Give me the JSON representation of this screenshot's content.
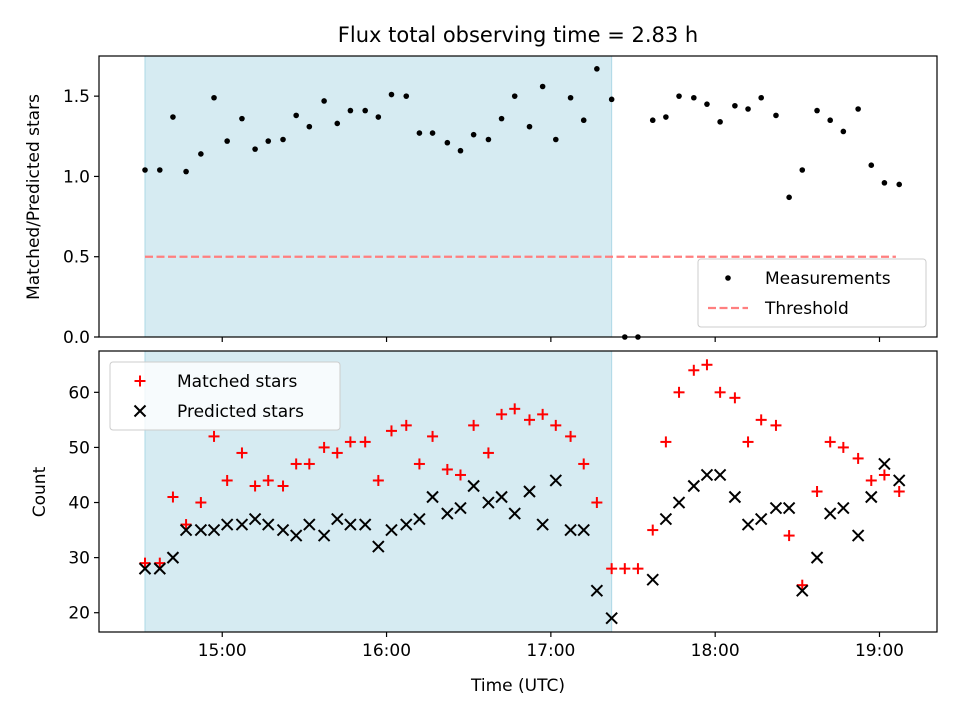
{
  "chart_data": [
    {
      "type": "scatter",
      "title": "Flux total observing time = 2.83 h",
      "xlabel": "",
      "ylabel": "Matched/Predicted stars",
      "x_unit": "hours UTC",
      "xlim": [
        14.25,
        19.35
      ],
      "ylim": [
        0.0,
        1.75
      ],
      "yticks": [
        0.0,
        0.5,
        1.0,
        1.5
      ],
      "ytick_labels": [
        "0.0",
        "0.5",
        "1.0",
        "1.5"
      ],
      "xticks": [
        15,
        16,
        17,
        18,
        19
      ],
      "shaded_span": {
        "x0": 14.53,
        "x1": 17.37,
        "color": "#add8e6"
      },
      "threshold": {
        "name": "Threshold",
        "y": 0.5,
        "x0": 14.53,
        "x1": 19.1,
        "color": "#ff7f7f",
        "style": "dashed"
      },
      "legend": {
        "position": "lower-right",
        "entries": [
          "Measurements",
          "Threshold"
        ]
      },
      "series": [
        {
          "name": "Measurements",
          "color": "#000000",
          "marker": "dot",
          "x": [
            14.53,
            14.62,
            14.7,
            14.78,
            14.87,
            14.95,
            15.03,
            15.12,
            15.2,
            15.28,
            15.37,
            15.45,
            15.53,
            15.62,
            15.7,
            15.78,
            15.87,
            15.95,
            16.03,
            16.12,
            16.2,
            16.28,
            16.37,
            16.45,
            16.53,
            16.62,
            16.7,
            16.78,
            16.87,
            16.95,
            17.03,
            17.12,
            17.2,
            17.28,
            17.37,
            17.45,
            17.53,
            17.62,
            17.7,
            17.78,
            17.87,
            17.95,
            18.03,
            18.12,
            18.2,
            18.28,
            18.37,
            18.45,
            18.53,
            18.62,
            18.7,
            18.78,
            18.87,
            18.95,
            19.03,
            19.12
          ],
          "y": [
            1.04,
            1.04,
            1.37,
            1.03,
            1.14,
            1.49,
            1.22,
            1.36,
            1.17,
            1.22,
            1.23,
            1.38,
            1.31,
            1.47,
            1.33,
            1.41,
            1.41,
            1.37,
            1.51,
            1.5,
            1.27,
            1.27,
            1.21,
            1.16,
            1.26,
            1.23,
            1.36,
            1.5,
            1.31,
            1.56,
            1.23,
            1.49,
            1.35,
            1.67,
            1.48,
            0.0,
            0.0,
            1.35,
            1.37,
            1.5,
            1.49,
            1.45,
            1.34,
            1.44,
            1.42,
            1.49,
            1.38,
            0.87,
            1.04,
            1.41,
            1.35,
            1.28,
            1.42,
            1.07,
            0.96,
            0.95
          ]
        }
      ]
    },
    {
      "type": "scatter",
      "title": "",
      "xlabel": "Time (UTC)",
      "ylabel": "Count",
      "x_unit": "hours UTC",
      "xlim": [
        14.25,
        19.35
      ],
      "ylim": [
        16.5,
        67.5
      ],
      "yticks": [
        20,
        30,
        40,
        50,
        60
      ],
      "ytick_labels": [
        "20",
        "30",
        "40",
        "50",
        "60"
      ],
      "xticks": [
        15,
        16,
        17,
        18,
        19
      ],
      "xtick_labels": [
        "15:00",
        "16:00",
        "17:00",
        "18:00",
        "19:00"
      ],
      "shaded_span": {
        "x0": 14.53,
        "x1": 17.37,
        "color": "#add8e6"
      },
      "legend": {
        "position": "upper-left",
        "entries": [
          "Matched stars",
          "Predicted stars"
        ]
      },
      "series": [
        {
          "name": "Matched stars",
          "color": "#ff0000",
          "marker": "plus",
          "x": [
            14.53,
            14.62,
            14.7,
            14.78,
            14.87,
            14.95,
            15.03,
            15.12,
            15.2,
            15.28,
            15.37,
            15.45,
            15.53,
            15.62,
            15.7,
            15.78,
            15.87,
            15.95,
            16.03,
            16.12,
            16.2,
            16.28,
            16.37,
            16.45,
            16.53,
            16.62,
            16.7,
            16.78,
            16.87,
            16.95,
            17.03,
            17.12,
            17.2,
            17.28,
            17.37,
            17.45,
            17.53,
            17.62,
            17.7,
            17.78,
            17.87,
            17.95,
            18.03,
            18.12,
            18.2,
            18.28,
            18.37,
            18.45,
            18.53,
            18.62,
            18.7,
            18.78,
            18.87,
            18.95,
            19.03,
            19.12
          ],
          "y": [
            29,
            29,
            41,
            36,
            40,
            52,
            44,
            49,
            43,
            44,
            43,
            47,
            47,
            50,
            49,
            51,
            51,
            44,
            53,
            54,
            47,
            52,
            46,
            45,
            54,
            49,
            56,
            57,
            55,
            56,
            54,
            52,
            47,
            40,
            28,
            28,
            28,
            35,
            51,
            60,
            64,
            65,
            60,
            59,
            51,
            55,
            54,
            34,
            25,
            42,
            51,
            50,
            48,
            44,
            45,
            42
          ]
        },
        {
          "name": "Predicted stars",
          "color": "#000000",
          "marker": "x",
          "x": [
            14.53,
            14.62,
            14.7,
            14.78,
            14.87,
            14.95,
            15.03,
            15.12,
            15.2,
            15.28,
            15.37,
            15.45,
            15.53,
            15.62,
            15.7,
            15.78,
            15.87,
            15.95,
            16.03,
            16.12,
            16.2,
            16.28,
            16.37,
            16.45,
            16.53,
            16.62,
            16.7,
            16.78,
            16.87,
            16.95,
            17.03,
            17.12,
            17.2,
            17.28,
            17.37,
            17.62,
            17.7,
            17.78,
            17.87,
            17.95,
            18.03,
            18.12,
            18.2,
            18.28,
            18.37,
            18.45,
            18.53,
            18.62,
            18.7,
            18.78,
            18.87,
            18.95,
            19.03,
            19.12
          ],
          "y": [
            28,
            28,
            30,
            35,
            35,
            35,
            36,
            36,
            37,
            36,
            35,
            34,
            36,
            34,
            37,
            36,
            36,
            32,
            35,
            36,
            37,
            41,
            38,
            39,
            43,
            40,
            41,
            38,
            42,
            36,
            44,
            35,
            35,
            24,
            19,
            26,
            37,
            40,
            43,
            45,
            45,
            41,
            36,
            37,
            39,
            39,
            24,
            30,
            38,
            39,
            34,
            41,
            47,
            44
          ]
        }
      ]
    }
  ]
}
